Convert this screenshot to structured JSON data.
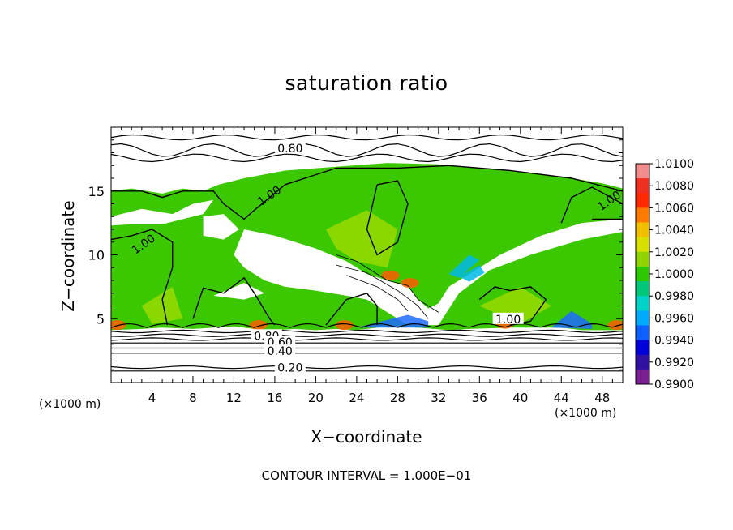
{
  "chart_data": {
    "type": "heatmap",
    "title": "saturation ratio",
    "xlabel": "X−coordinate",
    "ylabel": "Z−coordinate",
    "x_unit_left": "(×1000 m)",
    "x_unit_right": "(×1000 m)",
    "footer": "CONTOUR INTERVAL = 1.000E−01",
    "xlim": [
      0,
      50
    ],
    "ylim": [
      0,
      20
    ],
    "x_ticks": [
      "4",
      "8",
      "12",
      "16",
      "20",
      "24",
      "28",
      "32",
      "36",
      "40",
      "44",
      "48"
    ],
    "y_ticks": [
      "5",
      "10",
      "15"
    ],
    "colorbar": {
      "range": [
        0.99,
        1.01
      ],
      "labels": [
        "1.0100",
        "1.0080",
        "1.0060",
        "1.0040",
        "1.0020",
        "1.0000",
        "0.9980",
        "0.9960",
        "0.9940",
        "0.9920",
        "0.9900"
      ],
      "colors": [
        "#f08c8c",
        "#ee3020",
        "#ff2a00",
        "#ff7a00",
        "#f0c000",
        "#d8e000",
        "#8fd400",
        "#2ec800",
        "#00c87a",
        "#00d2c8",
        "#00aaff",
        "#1060ff",
        "#0000d8",
        "#3010a0",
        "#7a2090"
      ]
    },
    "contour_labels": [
      {
        "text": "0.80",
        "x": 17.5,
        "y": 18.3
      },
      {
        "text": "1.00",
        "x": 15.5,
        "y": 14.6
      },
      {
        "text": "1.00",
        "x": 3.2,
        "y": 10.8
      },
      {
        "text": "1.00",
        "x": 48.7,
        "y": 14.2
      },
      {
        "text": "1.00",
        "x": 38.8,
        "y": 4.9
      },
      {
        "text": "0.80",
        "x": 15.2,
        "y": 3.6
      },
      {
        "text": "0.60",
        "x": 16.5,
        "y": 3.1
      },
      {
        "text": "0.40",
        "x": 16.5,
        "y": 2.4
      },
      {
        "text": "0.20",
        "x": 17.5,
        "y": 1.1
      }
    ]
  }
}
